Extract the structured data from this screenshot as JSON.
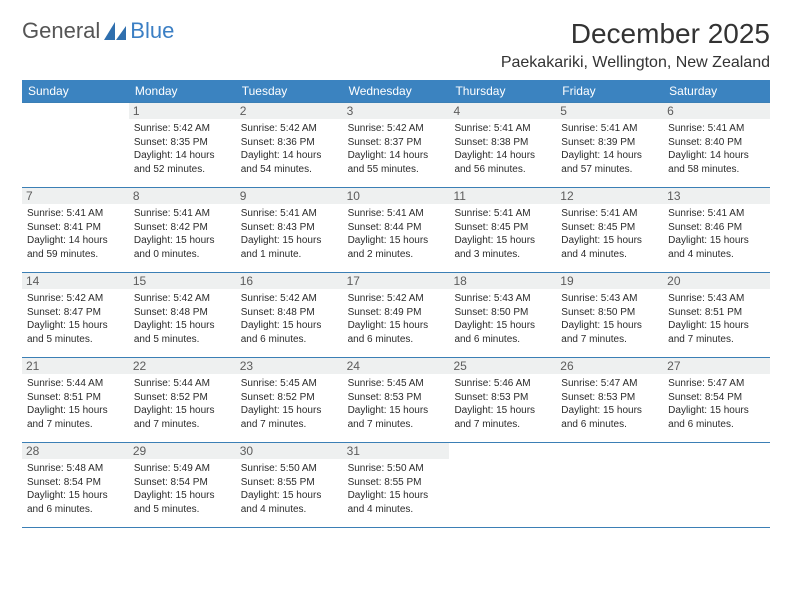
{
  "brand": {
    "part1": "General",
    "part2": "Blue"
  },
  "title": "December 2025",
  "location": "Paekakariki, Wellington, New Zealand",
  "colors": {
    "header_bg": "#3b83c0",
    "header_fg": "#ffffff",
    "daynum_bg": "#eef0f0",
    "daynum_fg": "#5c5c5c",
    "rule": "#3b7fb5",
    "text": "#2b2b2b",
    "brand_gray": "#555555",
    "brand_blue": "#3b7fc4"
  },
  "day_names": [
    "Sunday",
    "Monday",
    "Tuesday",
    "Wednesday",
    "Thursday",
    "Friday",
    "Saturday"
  ],
  "weeks": [
    [
      {
        "n": "",
        "sunrise": "",
        "sunset": "",
        "daylight": ""
      },
      {
        "n": "1",
        "sunrise": "Sunrise: 5:42 AM",
        "sunset": "Sunset: 8:35 PM",
        "daylight": "Daylight: 14 hours and 52 minutes."
      },
      {
        "n": "2",
        "sunrise": "Sunrise: 5:42 AM",
        "sunset": "Sunset: 8:36 PM",
        "daylight": "Daylight: 14 hours and 54 minutes."
      },
      {
        "n": "3",
        "sunrise": "Sunrise: 5:42 AM",
        "sunset": "Sunset: 8:37 PM",
        "daylight": "Daylight: 14 hours and 55 minutes."
      },
      {
        "n": "4",
        "sunrise": "Sunrise: 5:41 AM",
        "sunset": "Sunset: 8:38 PM",
        "daylight": "Daylight: 14 hours and 56 minutes."
      },
      {
        "n": "5",
        "sunrise": "Sunrise: 5:41 AM",
        "sunset": "Sunset: 8:39 PM",
        "daylight": "Daylight: 14 hours and 57 minutes."
      },
      {
        "n": "6",
        "sunrise": "Sunrise: 5:41 AM",
        "sunset": "Sunset: 8:40 PM",
        "daylight": "Daylight: 14 hours and 58 minutes."
      }
    ],
    [
      {
        "n": "7",
        "sunrise": "Sunrise: 5:41 AM",
        "sunset": "Sunset: 8:41 PM",
        "daylight": "Daylight: 14 hours and 59 minutes."
      },
      {
        "n": "8",
        "sunrise": "Sunrise: 5:41 AM",
        "sunset": "Sunset: 8:42 PM",
        "daylight": "Daylight: 15 hours and 0 minutes."
      },
      {
        "n": "9",
        "sunrise": "Sunrise: 5:41 AM",
        "sunset": "Sunset: 8:43 PM",
        "daylight": "Daylight: 15 hours and 1 minute."
      },
      {
        "n": "10",
        "sunrise": "Sunrise: 5:41 AM",
        "sunset": "Sunset: 8:44 PM",
        "daylight": "Daylight: 15 hours and 2 minutes."
      },
      {
        "n": "11",
        "sunrise": "Sunrise: 5:41 AM",
        "sunset": "Sunset: 8:45 PM",
        "daylight": "Daylight: 15 hours and 3 minutes."
      },
      {
        "n": "12",
        "sunrise": "Sunrise: 5:41 AM",
        "sunset": "Sunset: 8:45 PM",
        "daylight": "Daylight: 15 hours and 4 minutes."
      },
      {
        "n": "13",
        "sunrise": "Sunrise: 5:41 AM",
        "sunset": "Sunset: 8:46 PM",
        "daylight": "Daylight: 15 hours and 4 minutes."
      }
    ],
    [
      {
        "n": "14",
        "sunrise": "Sunrise: 5:42 AM",
        "sunset": "Sunset: 8:47 PM",
        "daylight": "Daylight: 15 hours and 5 minutes."
      },
      {
        "n": "15",
        "sunrise": "Sunrise: 5:42 AM",
        "sunset": "Sunset: 8:48 PM",
        "daylight": "Daylight: 15 hours and 5 minutes."
      },
      {
        "n": "16",
        "sunrise": "Sunrise: 5:42 AM",
        "sunset": "Sunset: 8:48 PM",
        "daylight": "Daylight: 15 hours and 6 minutes."
      },
      {
        "n": "17",
        "sunrise": "Sunrise: 5:42 AM",
        "sunset": "Sunset: 8:49 PM",
        "daylight": "Daylight: 15 hours and 6 minutes."
      },
      {
        "n": "18",
        "sunrise": "Sunrise: 5:43 AM",
        "sunset": "Sunset: 8:50 PM",
        "daylight": "Daylight: 15 hours and 6 minutes."
      },
      {
        "n": "19",
        "sunrise": "Sunrise: 5:43 AM",
        "sunset": "Sunset: 8:50 PM",
        "daylight": "Daylight: 15 hours and 7 minutes."
      },
      {
        "n": "20",
        "sunrise": "Sunrise: 5:43 AM",
        "sunset": "Sunset: 8:51 PM",
        "daylight": "Daylight: 15 hours and 7 minutes."
      }
    ],
    [
      {
        "n": "21",
        "sunrise": "Sunrise: 5:44 AM",
        "sunset": "Sunset: 8:51 PM",
        "daylight": "Daylight: 15 hours and 7 minutes."
      },
      {
        "n": "22",
        "sunrise": "Sunrise: 5:44 AM",
        "sunset": "Sunset: 8:52 PM",
        "daylight": "Daylight: 15 hours and 7 minutes."
      },
      {
        "n": "23",
        "sunrise": "Sunrise: 5:45 AM",
        "sunset": "Sunset: 8:52 PM",
        "daylight": "Daylight: 15 hours and 7 minutes."
      },
      {
        "n": "24",
        "sunrise": "Sunrise: 5:45 AM",
        "sunset": "Sunset: 8:53 PM",
        "daylight": "Daylight: 15 hours and 7 minutes."
      },
      {
        "n": "25",
        "sunrise": "Sunrise: 5:46 AM",
        "sunset": "Sunset: 8:53 PM",
        "daylight": "Daylight: 15 hours and 7 minutes."
      },
      {
        "n": "26",
        "sunrise": "Sunrise: 5:47 AM",
        "sunset": "Sunset: 8:53 PM",
        "daylight": "Daylight: 15 hours and 6 minutes."
      },
      {
        "n": "27",
        "sunrise": "Sunrise: 5:47 AM",
        "sunset": "Sunset: 8:54 PM",
        "daylight": "Daylight: 15 hours and 6 minutes."
      }
    ],
    [
      {
        "n": "28",
        "sunrise": "Sunrise: 5:48 AM",
        "sunset": "Sunset: 8:54 PM",
        "daylight": "Daylight: 15 hours and 6 minutes."
      },
      {
        "n": "29",
        "sunrise": "Sunrise: 5:49 AM",
        "sunset": "Sunset: 8:54 PM",
        "daylight": "Daylight: 15 hours and 5 minutes."
      },
      {
        "n": "30",
        "sunrise": "Sunrise: 5:50 AM",
        "sunset": "Sunset: 8:55 PM",
        "daylight": "Daylight: 15 hours and 4 minutes."
      },
      {
        "n": "31",
        "sunrise": "Sunrise: 5:50 AM",
        "sunset": "Sunset: 8:55 PM",
        "daylight": "Daylight: 15 hours and 4 minutes."
      },
      {
        "n": "",
        "sunrise": "",
        "sunset": "",
        "daylight": ""
      },
      {
        "n": "",
        "sunrise": "",
        "sunset": "",
        "daylight": ""
      },
      {
        "n": "",
        "sunrise": "",
        "sunset": "",
        "daylight": ""
      }
    ]
  ]
}
